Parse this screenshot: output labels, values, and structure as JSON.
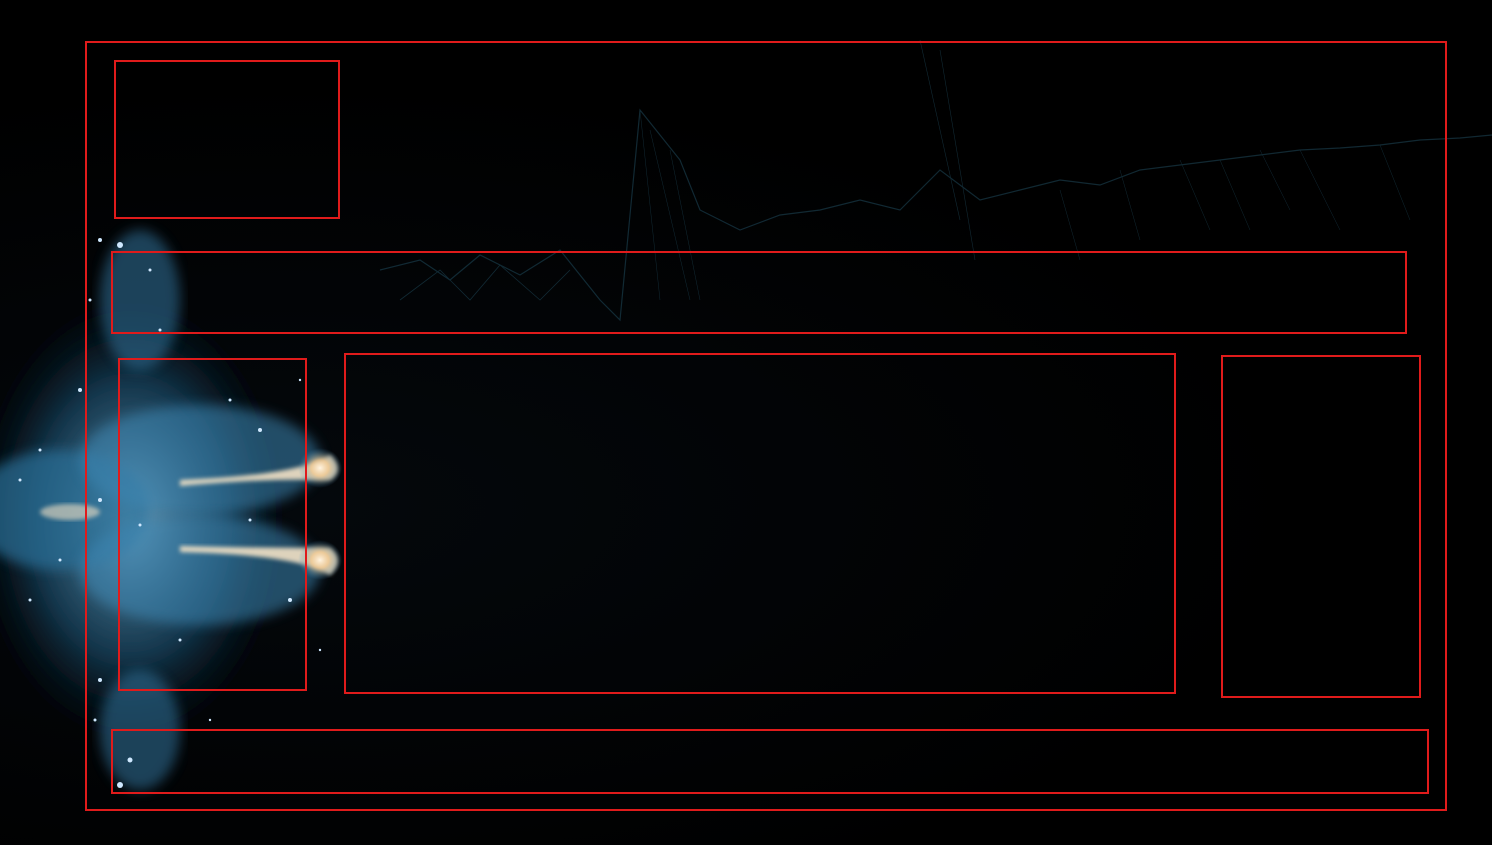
{
  "colors": {
    "frame": "#e01b1b",
    "background": "#000000",
    "nebula_blue": "#3a86b8",
    "nebula_glow": "#f4e6cf",
    "waveform": "#1f4a5c"
  },
  "layout_regions": {
    "outer_frame": "",
    "logo_box": "",
    "header_bar": "",
    "left_panel": "",
    "main_panel": "",
    "right_panel": "",
    "footer_bar": ""
  }
}
